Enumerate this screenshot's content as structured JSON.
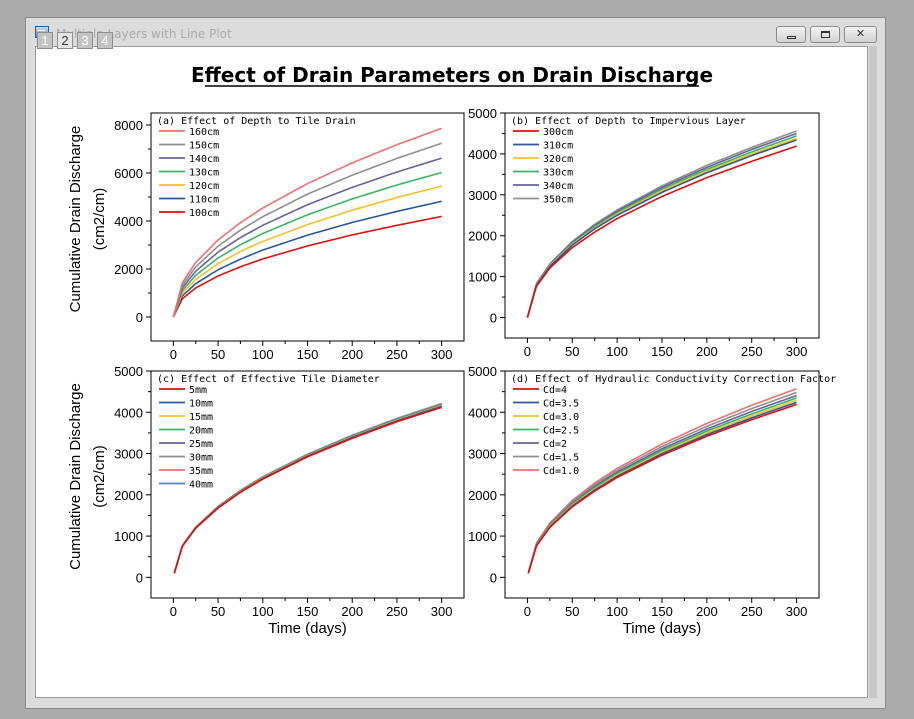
{
  "window": {
    "title": "Multiple Layers with Line Plot",
    "layer_tabs": [
      "1",
      "2",
      "3",
      "4"
    ],
    "active_layer": "2",
    "buttons": {
      "minimize": "",
      "maximize": "",
      "close": "✕"
    }
  },
  "page_title": "Effect of Drain Parameters on Drain Discharge",
  "chart_data": [
    {
      "type": "line",
      "title": "(a) Effect of Depth to Tile Drain",
      "xlabel": "",
      "ylabel": "Cumulative Drain Discharge",
      "ylabel_unit": "(cm2/cm)",
      "xlim": [
        -25,
        325
      ],
      "ylim": [
        -1000,
        8500
      ],
      "xticks": [
        0,
        50,
        100,
        150,
        200,
        250,
        300
      ],
      "yticks": [
        0,
        2000,
        4000,
        6000,
        8000
      ],
      "x": [
        0,
        10,
        25,
        50,
        75,
        100,
        150,
        200,
        250,
        300
      ],
      "series": [
        {
          "name": "160cm",
          "color": "#f07070",
          "values": [
            0,
            1430,
            2270,
            3210,
            3930,
            4540,
            5560,
            6420,
            7180,
            7860
          ]
        },
        {
          "name": "150cm",
          "color": "#909090",
          "values": [
            0,
            1320,
            2090,
            2950,
            3620,
            4180,
            5120,
            5910,
            6610,
            7240
          ]
        },
        {
          "name": "140cm",
          "color": "#64649a",
          "values": [
            0,
            1210,
            1910,
            2700,
            3310,
            3820,
            4680,
            5400,
            6040,
            6620
          ]
        },
        {
          "name": "130cm",
          "color": "#3cb464",
          "values": [
            0,
            1100,
            1740,
            2460,
            3010,
            3480,
            4260,
            4920,
            5500,
            6020
          ]
        },
        {
          "name": "120cm",
          "color": "#f5c030",
          "values": [
            0,
            1000,
            1570,
            2220,
            2730,
            3150,
            3850,
            4450,
            4980,
            5450
          ]
        },
        {
          "name": "110cm",
          "color": "#2a5a9a",
          "values": [
            0,
            880,
            1390,
            1970,
            2410,
            2790,
            3410,
            3940,
            4400,
            4820
          ]
        },
        {
          "name": "100cm",
          "color": "#e01010",
          "values": [
            0,
            760,
            1210,
            1710,
            2090,
            2420,
            2960,
            3420,
            3820,
            4190
          ]
        }
      ]
    },
    {
      "type": "line",
      "title": "(b) Effect of Depth to Impervious Layer",
      "xlabel": "",
      "ylabel": "",
      "xlim": [
        -25,
        325
      ],
      "ylim": [
        -500,
        5000
      ],
      "xticks": [
        0,
        50,
        100,
        150,
        200,
        250,
        300
      ],
      "yticks": [
        0,
        1000,
        2000,
        3000,
        4000,
        5000
      ],
      "x": [
        0,
        10,
        25,
        50,
        75,
        100,
        150,
        200,
        250,
        300
      ],
      "series": [
        {
          "name": "300cm",
          "color": "#e01010",
          "values": [
            0,
            760,
            1210,
            1710,
            2090,
            2420,
            2960,
            3420,
            3820,
            4190
          ]
        },
        {
          "name": "310cm",
          "color": "#2a5a9a",
          "values": [
            0,
            790,
            1250,
            1770,
            2170,
            2500,
            3060,
            3540,
            3960,
            4340
          ]
        },
        {
          "name": "320cm",
          "color": "#f5c030",
          "values": [
            0,
            800,
            1270,
            1790,
            2190,
            2530,
            3100,
            3580,
            4000,
            4380
          ]
        },
        {
          "name": "330cm",
          "color": "#3cb464",
          "values": [
            0,
            810,
            1280,
            1810,
            2220,
            2560,
            3140,
            3620,
            4050,
            4440
          ]
        },
        {
          "name": "340cm",
          "color": "#64649a",
          "values": [
            0,
            820,
            1300,
            1840,
            2250,
            2600,
            3180,
            3670,
            4110,
            4500
          ]
        },
        {
          "name": "350cm",
          "color": "#909090",
          "values": [
            0,
            830,
            1310,
            1860,
            2280,
            2630,
            3220,
            3720,
            4160,
            4560
          ]
        }
      ]
    },
    {
      "type": "line",
      "title": "(c) Effect of Effective Tile Diameter",
      "xlabel": "Time (days)",
      "ylabel": "Cumulative Drain Discharge",
      "ylabel_unit": "(cm2/cm)",
      "xlim": [
        -25,
        325
      ],
      "ylim": [
        -500,
        5000
      ],
      "xticks": [
        0,
        50,
        100,
        150,
        200,
        250,
        300
      ],
      "yticks": [
        0,
        1000,
        2000,
        3000,
        4000,
        5000
      ],
      "x": [
        1,
        10,
        25,
        50,
        75,
        100,
        150,
        200,
        250,
        300
      ],
      "series": [
        {
          "name": "5mm",
          "color": "#e01010",
          "values": [
            100,
            750,
            1190,
            1680,
            2060,
            2380,
            2920,
            3370,
            3770,
            4120
          ]
        },
        {
          "name": "10mm",
          "color": "#2a5a9a",
          "values": [
            100,
            755,
            1195,
            1690,
            2070,
            2395,
            2935,
            3390,
            3790,
            4145
          ]
        },
        {
          "name": "15mm",
          "color": "#f5c030",
          "values": [
            100,
            758,
            1200,
            1697,
            2080,
            2405,
            2945,
            3400,
            3805,
            4160
          ]
        },
        {
          "name": "20mm",
          "color": "#3cb464",
          "values": [
            100,
            761,
            1204,
            1703,
            2087,
            2413,
            2955,
            3412,
            3816,
            4175
          ]
        },
        {
          "name": "25mm",
          "color": "#64649a",
          "values": [
            100,
            763,
            1208,
            1708,
            2093,
            2420,
            2963,
            3421,
            3826,
            4186
          ]
        },
        {
          "name": "30mm",
          "color": "#909090",
          "values": [
            100,
            765,
            1211,
            1712,
            2098,
            2426,
            2970,
            3429,
            3835,
            4196
          ]
        },
        {
          "name": "35mm",
          "color": "#f07070",
          "values": [
            100,
            767,
            1214,
            1716,
            2103,
            2431,
            2977,
            3437,
            3843,
            4205
          ]
        },
        {
          "name": "40mm",
          "color": "#4a88c8",
          "values": [
            100,
            769,
            1217,
            1720,
            2107,
            2436,
            2983,
            3444,
            3851,
            4213
          ]
        }
      ]
    },
    {
      "type": "line",
      "title": "(d) Effect of Hydraulic Conductivity Correction Factor",
      "xlabel": "Time (days)",
      "ylabel": "",
      "xlim": [
        -25,
        325
      ],
      "ylim": [
        -500,
        5000
      ],
      "xticks": [
        0,
        50,
        100,
        150,
        200,
        250,
        300
      ],
      "yticks": [
        0,
        1000,
        2000,
        3000,
        4000,
        5000
      ],
      "x": [
        1,
        10,
        25,
        50,
        75,
        100,
        150,
        200,
        250,
        300
      ],
      "series": [
        {
          "name": "Cd=4",
          "color": "#e01010",
          "values": [
            100,
            760,
            1210,
            1710,
            2090,
            2420,
            2960,
            3420,
            3820,
            4190
          ]
        },
        {
          "name": "Cd=3.5",
          "color": "#2a5a9a",
          "values": [
            100,
            770,
            1225,
            1730,
            2115,
            2450,
            2995,
            3460,
            3865,
            4240
          ]
        },
        {
          "name": "Cd=3.0",
          "color": "#f5c030",
          "values": [
            100,
            780,
            1240,
            1750,
            2140,
            2480,
            3030,
            3500,
            3910,
            4290
          ]
        },
        {
          "name": "Cd=2.5",
          "color": "#3cb464",
          "values": [
            100,
            790,
            1255,
            1775,
            2170,
            2510,
            3070,
            3545,
            3960,
            4345
          ]
        },
        {
          "name": "Cd=2",
          "color": "#64649a",
          "values": [
            100,
            800,
            1270,
            1800,
            2200,
            2545,
            3115,
            3595,
            4020,
            4405
          ]
        },
        {
          "name": "Cd=1.5",
          "color": "#909090",
          "values": [
            100,
            815,
            1290,
            1830,
            2240,
            2590,
            3170,
            3660,
            4090,
            4480
          ]
        },
        {
          "name": "Cd=1.0",
          "color": "#f07070",
          "values": [
            100,
            830,
            1315,
            1865,
            2285,
            2640,
            3230,
            3730,
            4170,
            4570
          ]
        }
      ]
    }
  ]
}
